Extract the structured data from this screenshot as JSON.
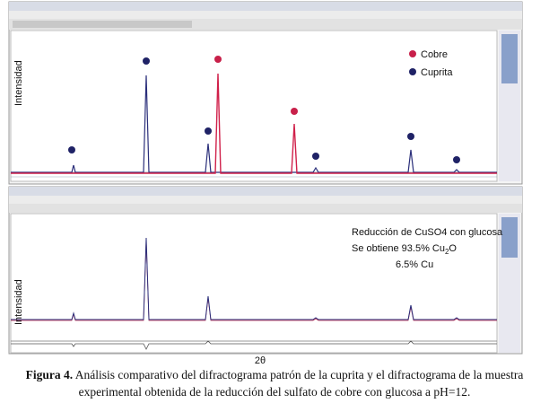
{
  "top_panel": {
    "y_label": "Intensidad",
    "legend": [
      "Cobre",
      "Cuprita"
    ]
  },
  "bottom_panel": {
    "y_label": "Intensidad",
    "annotation": {
      "line1": "Reducción de CuSO4 con glucosa",
      "line2": [
        "Se obtiene 93.5% Cu",
        "2",
        "O"
      ],
      "line3": "6.5% Cu"
    },
    "x_label": "2θ"
  },
  "caption": {
    "label": "Figura 4.",
    "text": "Análisis comparativo del difractograma patrón de la cuprita y el difractograma de la muestra experimental obtenida de la reducción del sulfato de cobre con glucosa a pH=12."
  }
}
